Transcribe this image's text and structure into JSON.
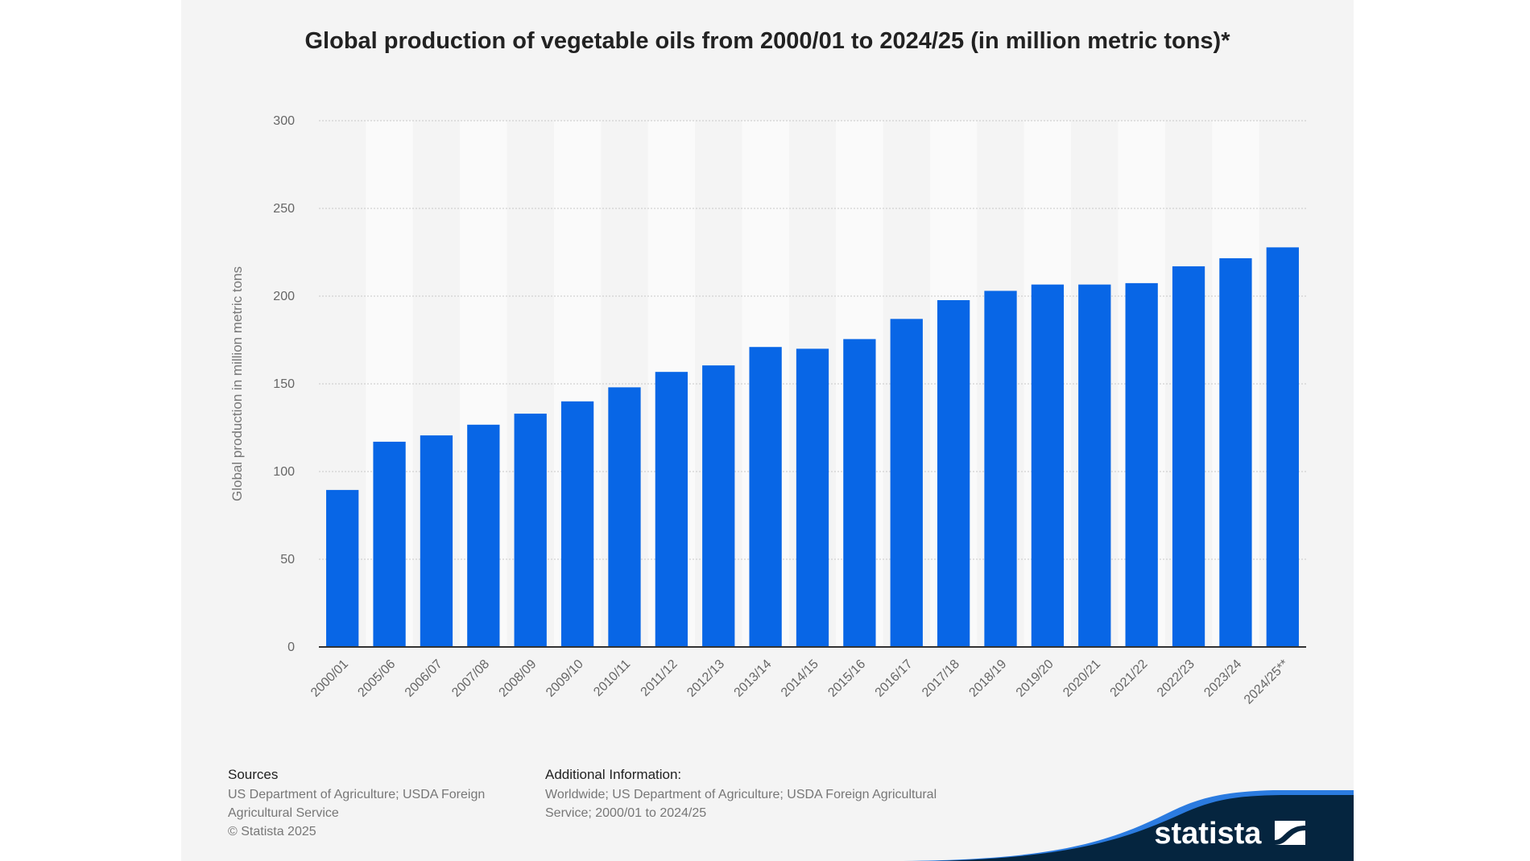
{
  "chart_data": {
    "type": "bar",
    "title": "Global production of vegetable oils from 2000/01 to 2024/25 (in million metric tons)*",
    "xlabel": "",
    "ylabel": "Global production in million metric tons",
    "ylim": [
      0,
      300
    ],
    "yticks": [
      0,
      50,
      100,
      150,
      200,
      250,
      300
    ],
    "grid": true,
    "categories": [
      "2000/01",
      "2005/06",
      "2006/07",
      "2007/08",
      "2008/09",
      "2009/10",
      "2010/11",
      "2011/12",
      "2012/13",
      "2013/14",
      "2014/15",
      "2015/16",
      "2016/17",
      "2017/18",
      "2018/19",
      "2019/20",
      "2020/21",
      "2021/22",
      "2022/23",
      "2023/24",
      "2024/25**"
    ],
    "values": [
      89.5,
      117,
      120.6,
      126.7,
      133,
      140,
      148,
      156.8,
      160.5,
      171,
      170,
      175.5,
      187,
      197.7,
      203,
      206.6,
      206.6,
      207.4,
      217,
      221.6,
      227.8
    ],
    "bar_color": "#0866e6"
  },
  "footer": {
    "sources_heading": "Sources",
    "sources_line1": "US Department of Agriculture; USDA Foreign",
    "sources_line2": "Agricultural Service",
    "copyright": "© Statista 2025",
    "additional_heading": "Additional Information:",
    "additional_line1": "Worldwide; US Department of Agriculture; USDA Foreign Agricultural",
    "additional_line2": "Service; 2000/01 to 2024/25"
  },
  "logo": {
    "text": "statista",
    "navy": "#05253f",
    "blue": "#2b7be0"
  }
}
